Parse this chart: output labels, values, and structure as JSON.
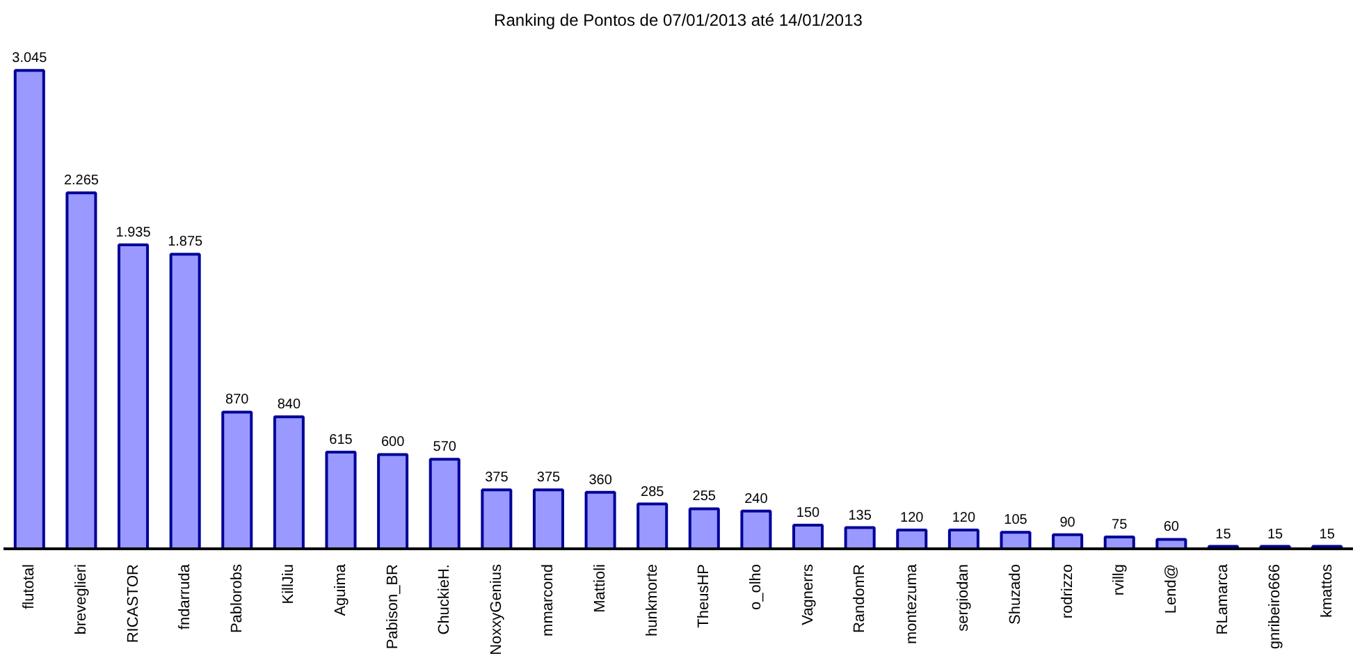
{
  "chart_data": {
    "type": "bar",
    "title": "Ranking de Pontos de 07/01/2013 até 14/01/2013",
    "categories": [
      "flutotal",
      "breveglieri",
      "RICASTOR",
      "fndarruda",
      "Pablorobs",
      "KillJiu",
      "Aguima",
      "Pabison_BR",
      "ChuckieH.",
      "NoxxyGenius",
      "mmarcond",
      "Mattioli",
      "hunkmorte",
      "TheusHP",
      "o_olho",
      "Vagnerrs",
      "RandomR",
      "montezuma",
      "sergiodan",
      "Shuzado",
      "rodrizzo",
      "rvillg",
      "Lend@",
      "RLamarca",
      "gnribeiro666",
      "kmattos"
    ],
    "values": [
      3045,
      2265,
      1935,
      1875,
      870,
      840,
      615,
      600,
      570,
      375,
      375,
      360,
      285,
      255,
      240,
      150,
      135,
      120,
      120,
      105,
      90,
      75,
      60,
      15,
      15,
      15
    ],
    "value_labels": [
      "3.045",
      "2.265",
      "1.935",
      "1.875",
      "870",
      "840",
      "615",
      "600",
      "570",
      "375",
      "375",
      "360",
      "285",
      "255",
      "240",
      "150",
      "135",
      "120",
      "120",
      "105",
      "90",
      "75",
      "60",
      "15",
      "15",
      "15"
    ],
    "color": "#9999ff",
    "grid": false,
    "tick_labels": "x"
  }
}
